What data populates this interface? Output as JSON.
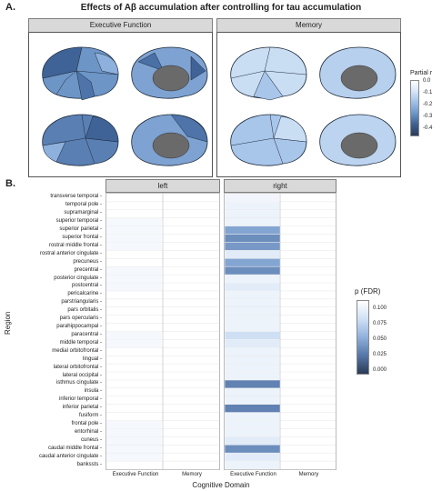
{
  "panel_a": {
    "letter": "A.",
    "title": "Effects of Aβ accumulation after controlling for tau accumulation",
    "facets": [
      "Executive Function",
      "Memory"
    ],
    "legend": {
      "title": "Partial r",
      "ticks": [
        "0.0",
        "-0.1",
        "-0.2",
        "-0.3",
        "-0.4"
      ],
      "gradient": [
        "#ffffff",
        "#d4e4f7",
        "#9dbee6",
        "#6a95c8",
        "#3e5f8f",
        "#2a3d5a"
      ]
    },
    "colors": {
      "ef_medium": "#6d95c6",
      "ef_dark": "#3f6396",
      "mem_light": "#c9ddf3",
      "mem_mid": "#a8c5ea",
      "medial_wall": "#6a6a6a"
    }
  },
  "panel_b": {
    "letter": "B.",
    "facets": [
      "left",
      "right"
    ],
    "y_axis_title": "Region",
    "x_axis_title": "Cognitive Domain",
    "x_ticks": [
      "Executive Function",
      "Memory"
    ],
    "legend": {
      "title": "p (FDR)",
      "ticks": [
        "0.100",
        "0.075",
        "0.050",
        "0.025",
        "0.000"
      ],
      "gradient": [
        "#ffffff",
        "#cfe0f5",
        "#8fb0dc",
        "#5577a8",
        "#2a3a55"
      ]
    },
    "regions": [
      "transverse temporal",
      "temporal pole",
      "supramarginal",
      "superior temporal",
      "superior parietal",
      "superior frontal",
      "rostral middle frontal",
      "rostral anterior cingulate",
      "precuneus",
      "precentral",
      "posterior cingulate",
      "postcentral",
      "pericalcarine",
      "parstriangularis",
      "pars orbitalis",
      "pars opercularis",
      "parahippocampal",
      "paracentral",
      "middle temporal",
      "medial orbitofrontal",
      "lingual",
      "lateral orbitofrontal",
      "lateral occipital",
      "isthmus cingulate",
      "insula",
      "inferior temporal",
      "inferior parietal",
      "fusiform",
      "frontal pole",
      "entorhinal",
      "cuneus",
      "caudal middle frontal",
      "caudal anterior cingulate",
      "bankssts"
    ]
  },
  "chart_data": {
    "type": "heatmap",
    "xlabel": "Cognitive Domain",
    "ylabel": "Region",
    "facets": [
      "left",
      "right"
    ],
    "x": [
      "Executive Function",
      "Memory"
    ],
    "y": [
      "transverse temporal",
      "temporal pole",
      "supramarginal",
      "superior temporal",
      "superior parietal",
      "superior frontal",
      "rostral middle frontal",
      "rostral anterior cingulate",
      "precuneus",
      "precentral",
      "posterior cingulate",
      "postcentral",
      "pericalcarine",
      "parstriangularis",
      "pars orbitalis",
      "pars opercularis",
      "parahippocampal",
      "paracentral",
      "middle temporal",
      "medial orbitofrontal",
      "lingual",
      "lateral orbitofrontal",
      "lateral occipital",
      "isthmus cingulate",
      "insula",
      "inferior temporal",
      "inferior parietal",
      "fusiform",
      "frontal pole",
      "entorhinal",
      "cuneus",
      "caudal middle frontal",
      "caudal anterior cingulate",
      "bankssts"
    ],
    "legend_title": "p (FDR)",
    "color_range": [
      0.0,
      0.1
    ],
    "values": {
      "left": {
        "Executive Function": [
          null,
          null,
          null,
          0.095,
          0.095,
          0.095,
          0.095,
          null,
          null,
          0.095,
          0.095,
          0.095,
          null,
          null,
          null,
          null,
          null,
          0.095,
          0.095,
          null,
          null,
          null,
          null,
          null,
          null,
          null,
          null,
          null,
          0.095,
          0.095,
          0.095,
          0.095,
          0.095,
          null
        ],
        "Memory": [
          null,
          null,
          null,
          null,
          null,
          null,
          null,
          null,
          null,
          null,
          null,
          null,
          null,
          null,
          null,
          null,
          null,
          null,
          null,
          null,
          null,
          null,
          null,
          null,
          null,
          null,
          null,
          null,
          null,
          null,
          null,
          null,
          null,
          null
        ]
      },
      "right": {
        "Executive Function": [
          0.093,
          0.09,
          0.09,
          0.09,
          0.045,
          0.035,
          0.04,
          0.085,
          0.045,
          0.035,
          0.09,
          0.085,
          0.09,
          0.09,
          0.09,
          0.09,
          0.09,
          0.075,
          0.085,
          0.09,
          0.09,
          0.09,
          0.09,
          0.03,
          0.09,
          0.09,
          0.03,
          0.09,
          0.09,
          0.09,
          0.085,
          0.035,
          0.085,
          0.09
        ],
        "Memory": [
          null,
          null,
          null,
          null,
          null,
          null,
          null,
          null,
          null,
          null,
          null,
          null,
          null,
          null,
          null,
          null,
          null,
          null,
          null,
          null,
          null,
          null,
          null,
          null,
          null,
          null,
          null,
          null,
          null,
          null,
          null,
          null,
          null,
          null
        ]
      }
    }
  }
}
